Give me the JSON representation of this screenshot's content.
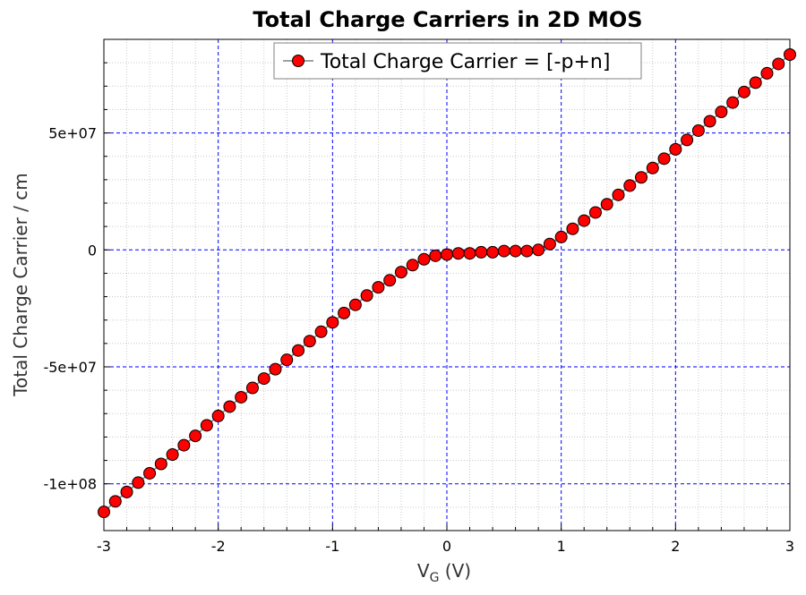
{
  "chart_data": {
    "type": "line",
    "title": "Total Charge Carriers in 2D MOS",
    "xlabel_main": "V",
    "xlabel_sub": "G",
    "xlabel_unit": " (V)",
    "ylabel": "Total Charge Carrier / cm",
    "xlim": [
      -3,
      3
    ],
    "ylim": [
      -120000000.0,
      90000000.0
    ],
    "x_ticks": [
      -3,
      -2,
      -1,
      0,
      1,
      2,
      3
    ],
    "x_tick_labels": [
      "-3",
      "-2",
      "-1",
      "0",
      "1",
      "2",
      "3"
    ],
    "y_ticks": [
      -100000000.0,
      -50000000.0,
      0,
      50000000.0
    ],
    "y_tick_labels": [
      "-1e+08",
      "-5e+07",
      "0",
      "5e+07"
    ],
    "grid": true,
    "legend_position": "top-center",
    "series": [
      {
        "name": "Total Charge Carrier = [-p+n]",
        "color": "#ff0000",
        "line_color": "#808080",
        "x": [
          -3.0,
          -2.9,
          -2.8,
          -2.7,
          -2.6,
          -2.5,
          -2.4,
          -2.3,
          -2.2,
          -2.1,
          -2.0,
          -1.9,
          -1.8,
          -1.7,
          -1.6,
          -1.5,
          -1.4,
          -1.3,
          -1.2,
          -1.1,
          -1.0,
          -0.9,
          -0.8,
          -0.7,
          -0.6,
          -0.5,
          -0.4,
          -0.3,
          -0.2,
          -0.1,
          0.0,
          0.1,
          0.2,
          0.3,
          0.4,
          0.5,
          0.6,
          0.7,
          0.8,
          0.9,
          1.0,
          1.1,
          1.2,
          1.3,
          1.4,
          1.5,
          1.6,
          1.7,
          1.8,
          1.9,
          2.0,
          2.1,
          2.2,
          2.3,
          2.4,
          2.5,
          2.6,
          2.7,
          2.8,
          2.9,
          3.0
        ],
        "y": [
          -112000000.0,
          -107500000.0,
          -103500000.0,
          -99500000.0,
          -95500000.0,
          -91500000.0,
          -87500000.0,
          -83500000.0,
          -79500000.0,
          -75000000.0,
          -71000000.0,
          -67000000.0,
          -63000000.0,
          -59000000.0,
          -55000000.0,
          -51000000.0,
          -47000000.0,
          -43000000.0,
          -39000000.0,
          -35000000.0,
          -31000000.0,
          -27000000.0,
          -23500000.0,
          -19500000.0,
          -16000000.0,
          -13000000.0,
          -9500000.0,
          -6500000.0,
          -4000000.0,
          -2500000.0,
          -2000000.0,
          -1500000.0,
          -1500000.0,
          -1000000.0,
          -1000000.0,
          -500000.0,
          -500000.0,
          -500000.0,
          0.0,
          2500000.0,
          5500000.0,
          9000000.0,
          12500000.0,
          16000000.0,
          19500000.0,
          23500000.0,
          27500000.0,
          31000000.0,
          35000000.0,
          39000000.0,
          43000000.0,
          47000000.0,
          51000000.0,
          55000000.0,
          59000000.0,
          63000000.0,
          67500000.0,
          71500000.0,
          75500000.0,
          79500000.0,
          83500000.0
        ]
      }
    ]
  }
}
